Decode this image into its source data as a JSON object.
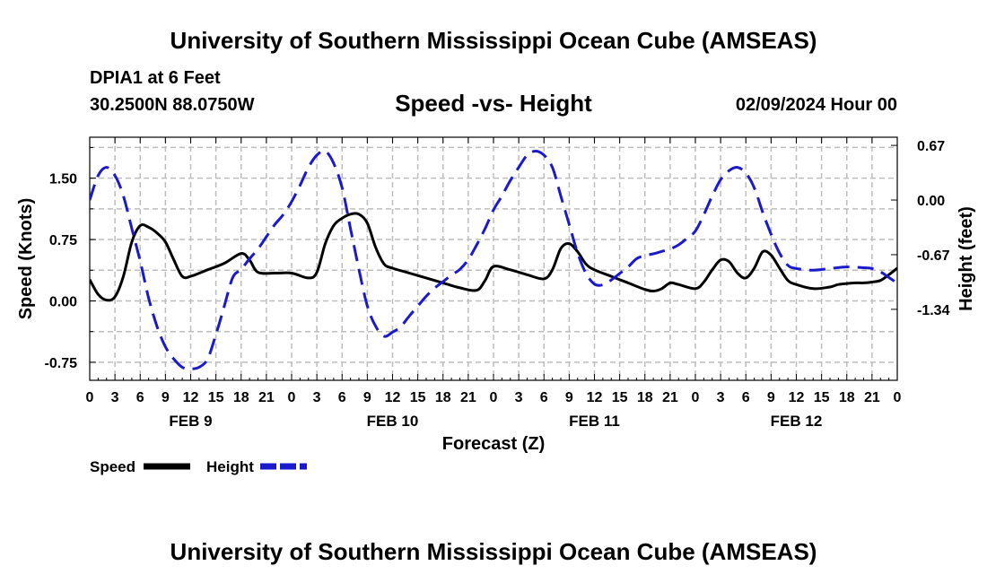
{
  "header": {
    "title": "University of Southern Mississippi Ocean Cube (AMSEAS)",
    "station": "DPIA1 at 6 Feet",
    "coords": "30.2500N  88.0750W",
    "subtitle": "Speed -vs- Height",
    "datetime": "02/09/2024 Hour 00"
  },
  "footer": {
    "title": "University of Southern Mississippi Ocean Cube (AMSEAS)"
  },
  "chart_data": {
    "type": "line",
    "xlabel": "Forecast (Z)",
    "ylabel_left": "Speed (Knots)",
    "ylabel_right": "Height (feet)",
    "x_range_hours": [
      0,
      96
    ],
    "x_tick_labels": [
      "0",
      "3",
      "6",
      "9",
      "12",
      "15",
      "18",
      "21",
      "0",
      "3",
      "6",
      "9",
      "12",
      "15",
      "18",
      "21",
      "0",
      "3",
      "6",
      "9",
      "12",
      "15",
      "18",
      "21",
      "0",
      "3",
      "6",
      "9",
      "12",
      "15",
      "18",
      "21",
      "0"
    ],
    "day_labels": [
      {
        "label": "FEB 9",
        "hour": 12
      },
      {
        "label": "FEB 10",
        "hour": 36
      },
      {
        "label": "FEB 11",
        "hour": 60
      },
      {
        "label": "FEB 12",
        "hour": 84
      }
    ],
    "y_left": {
      "min": -0.97,
      "max": 2.0,
      "ticks": [
        -0.75,
        0.0,
        0.75,
        1.5
      ],
      "tick_labels": [
        "-0.75",
        "0.00",
        "0.75",
        "1.50"
      ]
    },
    "y_right": {
      "min": -2.21,
      "max": 0.77,
      "ticks": [
        -1.34,
        -0.67,
        0.0,
        0.67
      ],
      "tick_labels": [
        "-1.34",
        "-0.67",
        "0.00",
        "0.67"
      ]
    },
    "grid": true,
    "series": [
      {
        "name": "Speed",
        "color": "#000000",
        "dash": "solid",
        "axis": "left",
        "points": [
          [
            0,
            0.26
          ],
          [
            1,
            0.08
          ],
          [
            2,
            0.01
          ],
          [
            3,
            0.05
          ],
          [
            4,
            0.3
          ],
          [
            5,
            0.72
          ],
          [
            6,
            0.92
          ],
          [
            7,
            0.9
          ],
          [
            8,
            0.83
          ],
          [
            9,
            0.72
          ],
          [
            10,
            0.5
          ],
          [
            11,
            0.3
          ],
          [
            12,
            0.3
          ],
          [
            14,
            0.38
          ],
          [
            16,
            0.46
          ],
          [
            18,
            0.58
          ],
          [
            19,
            0.5
          ],
          [
            20,
            0.35
          ],
          [
            22,
            0.34
          ],
          [
            24,
            0.34
          ],
          [
            26,
            0.28
          ],
          [
            27,
            0.35
          ],
          [
            28,
            0.7
          ],
          [
            29,
            0.92
          ],
          [
            30,
            1.01
          ],
          [
            31,
            1.06
          ],
          [
            32,
            1.06
          ],
          [
            33,
            0.95
          ],
          [
            34,
            0.65
          ],
          [
            35,
            0.45
          ],
          [
            36,
            0.4
          ],
          [
            38,
            0.34
          ],
          [
            40,
            0.28
          ],
          [
            42,
            0.22
          ],
          [
            44,
            0.16
          ],
          [
            46,
            0.13
          ],
          [
            47,
            0.25
          ],
          [
            48,
            0.42
          ],
          [
            50,
            0.38
          ],
          [
            52,
            0.32
          ],
          [
            54,
            0.27
          ],
          [
            55,
            0.38
          ],
          [
            56,
            0.64
          ],
          [
            57,
            0.7
          ],
          [
            58,
            0.6
          ],
          [
            59,
            0.45
          ],
          [
            60,
            0.38
          ],
          [
            62,
            0.3
          ],
          [
            64,
            0.22
          ],
          [
            66,
            0.14
          ],
          [
            67,
            0.12
          ],
          [
            68,
            0.15
          ],
          [
            69,
            0.22
          ],
          [
            70,
            0.2
          ],
          [
            72,
            0.15
          ],
          [
            73,
            0.23
          ],
          [
            74,
            0.38
          ],
          [
            75,
            0.5
          ],
          [
            76,
            0.48
          ],
          [
            77,
            0.34
          ],
          [
            78,
            0.28
          ],
          [
            79,
            0.4
          ],
          [
            80,
            0.6
          ],
          [
            81,
            0.56
          ],
          [
            82,
            0.4
          ],
          [
            83,
            0.25
          ],
          [
            84,
            0.2
          ],
          [
            86,
            0.15
          ],
          [
            88,
            0.17
          ],
          [
            89,
            0.2
          ],
          [
            91,
            0.22
          ],
          [
            92,
            0.22
          ],
          [
            93,
            0.23
          ],
          [
            94,
            0.25
          ],
          [
            95,
            0.32
          ],
          [
            96,
            0.4
          ]
        ]
      },
      {
        "name": "Height",
        "color": "#1a1acc",
        "dash": "dashed",
        "axis": "right",
        "points": [
          [
            0,
            0.0
          ],
          [
            1,
            0.3
          ],
          [
            2,
            0.4
          ],
          [
            3,
            0.3
          ],
          [
            4,
            0.05
          ],
          [
            5,
            -0.35
          ],
          [
            6,
            -0.75
          ],
          [
            7,
            -1.2
          ],
          [
            8,
            -1.55
          ],
          [
            9,
            -1.8
          ],
          [
            10,
            -1.95
          ],
          [
            11,
            -2.05
          ],
          [
            12,
            -2.07
          ],
          [
            13,
            -2.05
          ],
          [
            14,
            -1.95
          ],
          [
            15,
            -1.65
          ],
          [
            16,
            -1.3
          ],
          [
            17,
            -0.95
          ],
          [
            18,
            -0.85
          ],
          [
            19,
            -0.72
          ],
          [
            20,
            -0.6
          ],
          [
            21,
            -0.45
          ],
          [
            22,
            -0.3
          ],
          [
            23,
            -0.18
          ],
          [
            24,
            -0.02
          ],
          [
            25,
            0.18
          ],
          [
            26,
            0.4
          ],
          [
            27,
            0.55
          ],
          [
            28,
            0.6
          ],
          [
            29,
            0.45
          ],
          [
            30,
            0.15
          ],
          [
            31,
            -0.35
          ],
          [
            32,
            -0.85
          ],
          [
            33,
            -1.3
          ],
          [
            34,
            -1.55
          ],
          [
            35,
            -1.67
          ],
          [
            36,
            -1.62
          ],
          [
            37,
            -1.55
          ],
          [
            38,
            -1.42
          ],
          [
            39,
            -1.3
          ],
          [
            40,
            -1.18
          ],
          [
            41,
            -1.08
          ],
          [
            42,
            -1.0
          ],
          [
            43,
            -0.92
          ],
          [
            44,
            -0.85
          ],
          [
            45,
            -0.73
          ],
          [
            46,
            -0.55
          ],
          [
            47,
            -0.35
          ],
          [
            48,
            -0.12
          ],
          [
            49,
            0.05
          ],
          [
            50,
            0.24
          ],
          [
            51,
            0.4
          ],
          [
            52,
            0.55
          ],
          [
            53,
            0.6
          ],
          [
            54,
            0.55
          ],
          [
            55,
            0.4
          ],
          [
            56,
            0.05
          ],
          [
            57,
            -0.3
          ],
          [
            58,
            -0.65
          ],
          [
            59,
            -0.9
          ],
          [
            60,
            -1.03
          ],
          [
            61,
            -1.04
          ],
          [
            62,
            -0.98
          ],
          [
            63,
            -0.9
          ],
          [
            64,
            -0.82
          ],
          [
            65,
            -0.72
          ],
          [
            66,
            -0.68
          ],
          [
            67,
            -0.66
          ],
          [
            68,
            -0.63
          ],
          [
            69,
            -0.6
          ],
          [
            70,
            -0.55
          ],
          [
            71,
            -0.47
          ],
          [
            72,
            -0.38
          ],
          [
            73,
            -0.18
          ],
          [
            74,
            0.05
          ],
          [
            75,
            0.25
          ],
          [
            76,
            0.36
          ],
          [
            77,
            0.4
          ],
          [
            78,
            0.33
          ],
          [
            79,
            0.15
          ],
          [
            80,
            -0.15
          ],
          [
            81,
            -0.42
          ],
          [
            82,
            -0.65
          ],
          [
            83,
            -0.8
          ],
          [
            84,
            -0.84
          ],
          [
            86,
            -0.86
          ],
          [
            88,
            -0.84
          ],
          [
            90,
            -0.82
          ],
          [
            92,
            -0.83
          ],
          [
            93,
            -0.84
          ],
          [
            94,
            -0.88
          ],
          [
            95,
            -0.95
          ],
          [
            96,
            -1.02
          ]
        ]
      }
    ],
    "legend": {
      "position": "bottom-left",
      "items": [
        {
          "label": "Speed",
          "color": "#000000",
          "dash": "solid"
        },
        {
          "label": "Height",
          "color": "#1a1acc",
          "dash": "dashed"
        }
      ]
    }
  }
}
